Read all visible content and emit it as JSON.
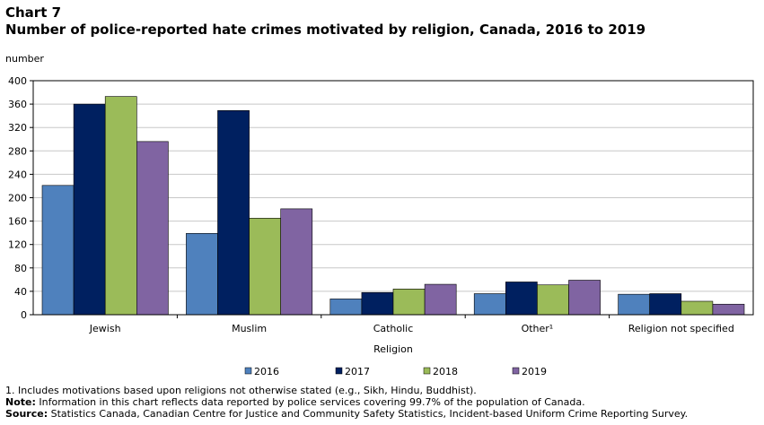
{
  "header": {
    "chart_number": "Chart 7",
    "title": "Number of police-reported hate crimes motivated by religion, Canada, 2016 to 2019"
  },
  "chart_data": {
    "type": "bar",
    "title": "Number of police-reported hate crimes motivated by religion, Canada, 2016 to 2019",
    "ylabel": "number",
    "xlabel": "Religion",
    "ylim": [
      0,
      400
    ],
    "yticks": [
      "0",
      "40",
      "80",
      "120",
      "160",
      "200",
      "240",
      "280",
      "320",
      "360",
      "400"
    ],
    "categories": [
      "Jewish",
      "Muslim",
      "Catholic",
      "Other¹",
      "Religion not specified"
    ],
    "series": [
      {
        "name": "2016",
        "color": "#4f81bd",
        "values": [
          221,
          139,
          27,
          36,
          35
        ]
      },
      {
        "name": "2017",
        "color": "#002060",
        "values": [
          360,
          349,
          38,
          56,
          36
        ]
      },
      {
        "name": "2018",
        "color": "#9bbb59",
        "values": [
          373,
          165,
          44,
          51,
          23
        ]
      },
      {
        "name": "2019",
        "color": "#8064a2",
        "values": [
          296,
          181,
          52,
          59,
          18
        ]
      }
    ],
    "grid": true,
    "legend_position": "bottom"
  },
  "notes": {
    "footnote": "1. Includes motivations based upon religions not otherwise stated (e.g., Sikh, Hindu, Buddhist).",
    "note_label": "Note:",
    "note_text": " Information in this chart reflects data reported by police services covering 99.7% of the population of Canada.",
    "source_label": "Source:",
    "source_text": " Statistics Canada, Canadian Centre for Justice and Community Safety Statistics, Incident-based Uniform Crime Reporting Survey."
  }
}
